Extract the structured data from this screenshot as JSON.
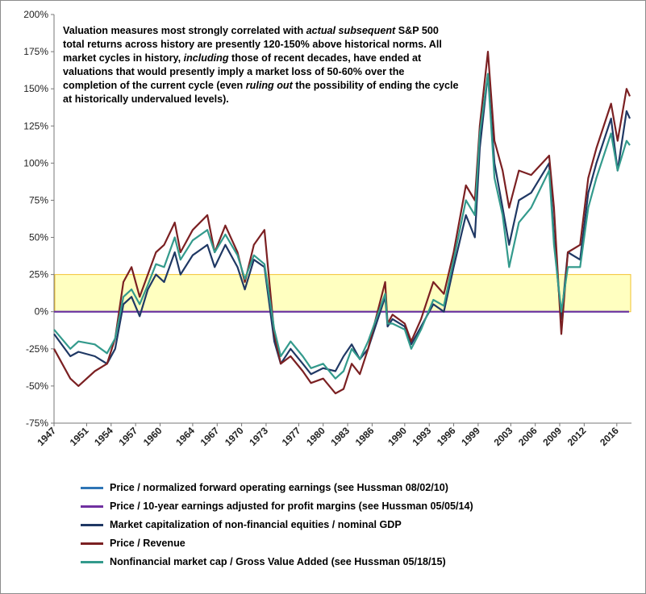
{
  "chart_data": {
    "type": "line",
    "y_ticks": [
      "200%",
      "175%",
      "150%",
      "125%",
      "100%",
      "75%",
      "50%",
      "25%",
      "0%",
      "-25%",
      "-50%",
      "-75%"
    ],
    "ylim": [
      -75,
      200
    ],
    "x_ticks": [
      "1947",
      "1951",
      "1954",
      "1957",
      "1960",
      "1964",
      "1967",
      "1970",
      "1973",
      "1977",
      "1980",
      "1983",
      "1986",
      "1990",
      "1993",
      "1996",
      "1999",
      "2003",
      "2006",
      "2009",
      "2012",
      "2016"
    ],
    "xlim": [
      1947,
      2017.8
    ],
    "band": {
      "from": 0,
      "to": 25,
      "fill": "#ffffc0",
      "border": "#f2c230"
    },
    "annotation_segments": [
      {
        "t": "Valuation measures most strongly correlated with ",
        "i": false
      },
      {
        "t": "actual subsequent",
        "i": true
      },
      {
        "t": " S&P 500 total returns across history are presently 120-150% above historical norms. All market cycles in history, ",
        "i": false
      },
      {
        "t": "including",
        "i": true
      },
      {
        "t": " those of recent decades, have ended at valuations that would presently imply a market loss of 50-60% over the completion of the current cycle (even ",
        "i": false
      },
      {
        "t": "ruling out",
        "i": true
      },
      {
        "t": " the possibility of ending the cycle at historically undervalued levels).",
        "i": false
      }
    ],
    "series": [
      {
        "name": "Price / normalized forward operating earnings (see Hussman 08/02/10)",
        "color": "#2e75b6",
        "x": [
          1947,
          2017.5
        ],
        "y": [
          0,
          0
        ]
      },
      {
        "name": "Price / 10-year earnings adjusted for profit margins (see Hussman 05/05/14)",
        "color": "#7030a0",
        "x": [
          1947,
          2017.5
        ],
        "y": [
          0,
          0
        ]
      },
      {
        "name": "Market capitalization of non-financial equities / nominal GDP",
        "color": "#1f3864",
        "x": [
          1947,
          1949,
          1950,
          1952,
          1953.5,
          1954.5,
          1955.5,
          1956.5,
          1957.5,
          1958.5,
          1959.5,
          1960.5,
          1961.8,
          1962.5,
          1964,
          1965.8,
          1966.7,
          1968,
          1969.5,
          1970.4,
          1971.5,
          1972.8,
          1974,
          1974.8,
          1976,
          1977.5,
          1978.5,
          1980,
          1981.5,
          1982.5,
          1983.5,
          1984.5,
          1985.5,
          1987.6,
          1987.9,
          1988.5,
          1990,
          1990.8,
          1992,
          1993.5,
          1994.8,
          1996,
          1997.5,
          1998.6,
          1999.2,
          2000.2,
          2001,
          2002,
          2002.8,
          2004,
          2005.5,
          2007.7,
          2008.3,
          2009.2,
          2010,
          2011.5,
          2012.5,
          2013.5,
          2015.3,
          2016.1,
          2017.2,
          2017.6
        ],
        "y": [
          -15,
          -30,
          -27,
          -30,
          -35,
          -25,
          5,
          10,
          -3,
          15,
          25,
          20,
          40,
          25,
          38,
          45,
          30,
          45,
          30,
          15,
          35,
          30,
          -20,
          -35,
          -25,
          -35,
          -42,
          -38,
          -40,
          -30,
          -22,
          -32,
          -25,
          10,
          -10,
          -5,
          -10,
          -22,
          -10,
          5,
          0,
          30,
          65,
          50,
          110,
          160,
          100,
          70,
          45,
          75,
          80,
          100,
          50,
          -5,
          40,
          35,
          80,
          100,
          130,
          95,
          135,
          130
        ]
      },
      {
        "name": "Price / Revenue",
        "color": "#7b2022",
        "x": [
          1947,
          1949,
          1950,
          1952,
          1953.5,
          1954.5,
          1955.5,
          1956.5,
          1957.5,
          1958.5,
          1959.5,
          1960.5,
          1961.8,
          1962.5,
          1964,
          1965.8,
          1966.7,
          1968,
          1969.5,
          1970.4,
          1971.5,
          1972.8,
          1974,
          1974.8,
          1976,
          1977.5,
          1978.5,
          1980,
          1981.5,
          1982.5,
          1983.5,
          1984.5,
          1985.5,
          1987.6,
          1987.9,
          1988.5,
          1990,
          1990.8,
          1992,
          1993.5,
          1994.8,
          1996,
          1997.5,
          1998.6,
          1999.2,
          2000.2,
          2001,
          2002,
          2002.8,
          2004,
          2005.5,
          2007.7,
          2008.3,
          2009.2,
          2010,
          2011.5,
          2012.5,
          2013.5,
          2015.3,
          2016.1,
          2017.2,
          2017.6
        ],
        "y": [
          -25,
          -45,
          -50,
          -40,
          -35,
          -18,
          20,
          30,
          10,
          25,
          40,
          45,
          60,
          40,
          55,
          65,
          40,
          58,
          40,
          20,
          45,
          55,
          -15,
          -35,
          -30,
          -40,
          -48,
          -45,
          -55,
          -52,
          -35,
          -42,
          -25,
          20,
          -8,
          -2,
          -8,
          -20,
          -5,
          20,
          12,
          40,
          85,
          75,
          125,
          175,
          115,
          95,
          70,
          95,
          92,
          105,
          70,
          -15,
          40,
          45,
          90,
          110,
          140,
          115,
          150,
          145
        ]
      },
      {
        "name": "Nonfinancial market cap / Gross Value Added (see Hussman 05/18/15)",
        "color": "#339a8c",
        "x": [
          1947,
          1949,
          1950,
          1952,
          1953.5,
          1954.5,
          1955.5,
          1956.5,
          1957.5,
          1958.5,
          1959.5,
          1960.5,
          1961.8,
          1962.5,
          1964,
          1965.8,
          1966.7,
          1968,
          1969.5,
          1970.4,
          1971.5,
          1972.8,
          1974,
          1974.8,
          1976,
          1977.5,
          1978.5,
          1980,
          1981.5,
          1982.5,
          1983.5,
          1984.5,
          1985.5,
          1987.6,
          1987.9,
          1988.5,
          1990,
          1990.8,
          1992,
          1993.5,
          1994.8,
          1996,
          1997.5,
          1998.6,
          1999.2,
          2000.2,
          2001,
          2002,
          2002.8,
          2004,
          2005.5,
          2007.7,
          2008.3,
          2009.2,
          2010,
          2011.5,
          2012.5,
          2013.5,
          2015.3,
          2016.1,
          2017.2,
          2017.6
        ],
        "y": [
          -12,
          -25,
          -20,
          -22,
          -28,
          -18,
          10,
          15,
          5,
          18,
          32,
          30,
          50,
          35,
          48,
          55,
          40,
          52,
          38,
          22,
          38,
          32,
          -12,
          -30,
          -20,
          -30,
          -38,
          -35,
          -45,
          -40,
          -25,
          -32,
          -20,
          12,
          -8,
          -8,
          -12,
          -25,
          -12,
          8,
          4,
          35,
          75,
          65,
          120,
          160,
          90,
          65,
          30,
          60,
          70,
          95,
          45,
          0,
          30,
          30,
          70,
          90,
          120,
          95,
          115,
          112
        ]
      }
    ]
  }
}
